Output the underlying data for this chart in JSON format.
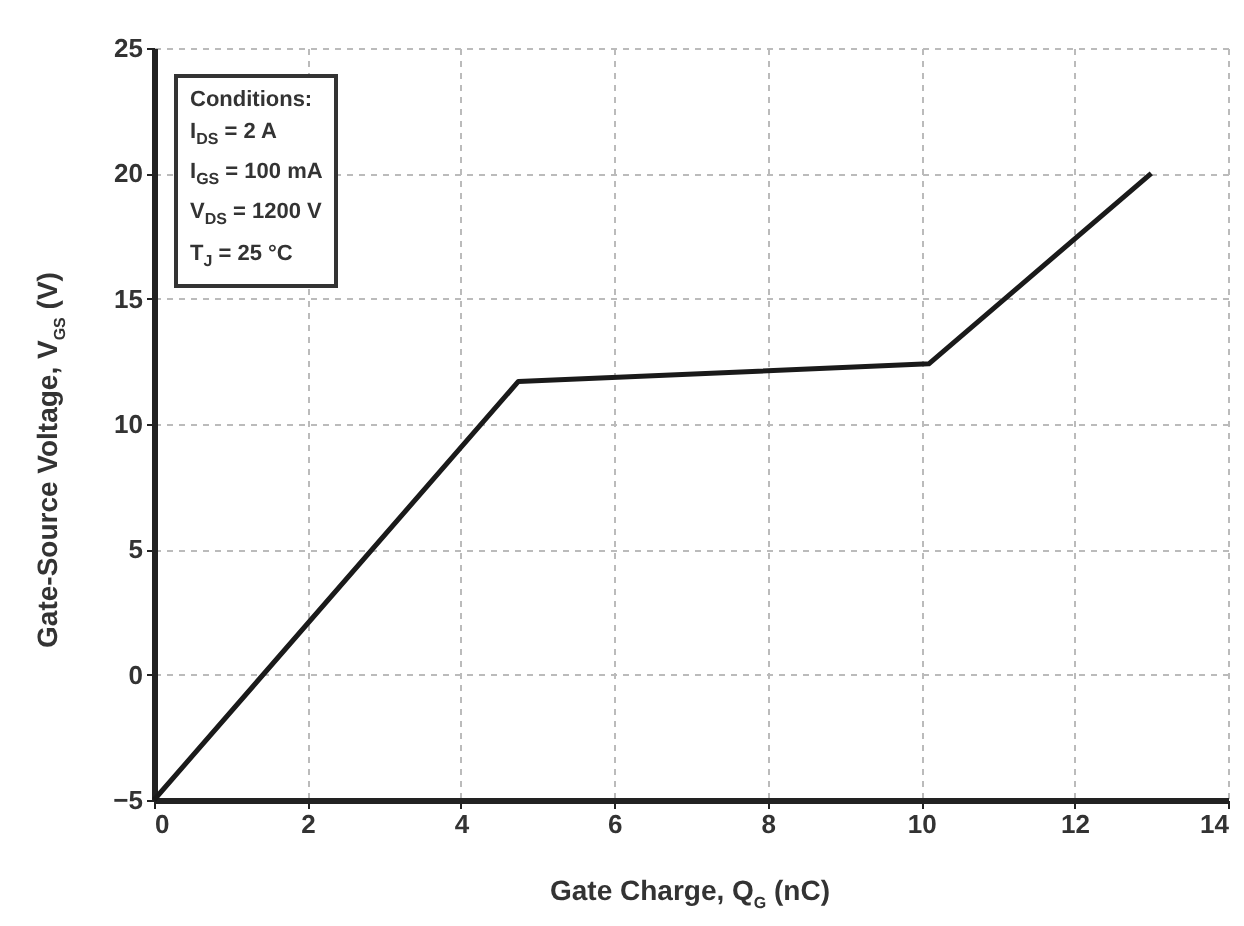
{
  "chart_data": {
    "type": "line",
    "xlabel": "Gate Charge, Q$_{G}$ (nC)",
    "ylabel": "Gate-Source Voltage, V$_{GS}$ (V)",
    "annotations": [
      "Conditions:",
      "I$_{DS}$ = 2 A",
      "I$_{GS}$ = 100 mA",
      "V$_{DS}$ = 1200 V",
      "T$_{J}$ = 25 °C"
    ],
    "x": [
      0,
      4.75,
      10.1,
      13
    ],
    "series": [
      {
        "color": "#1a1a1a",
        "values": [
          -5,
          11.7,
          12.4,
          20
        ]
      }
    ],
    "xlim": [
      0,
      14
    ],
    "xticks": [
      0,
      2,
      4,
      6,
      8,
      10,
      12,
      14
    ],
    "ylim": [
      -5,
      25
    ],
    "yticks": [
      -5,
      0,
      5,
      10,
      15,
      20,
      25
    ],
    "grid": true,
    "marker": "none",
    "line_style": "solid"
  }
}
